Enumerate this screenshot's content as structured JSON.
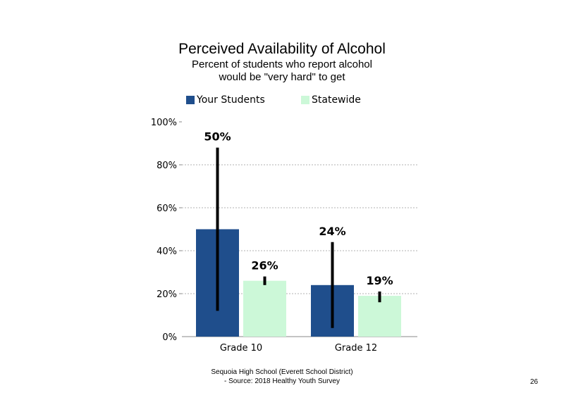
{
  "chart_data": {
    "type": "bar",
    "title": "Perceived Availability of Alcohol",
    "subtitle_lines": [
      "Percent of students who report alcohol",
      "would be \"very hard\" to get"
    ],
    "categories": [
      "Grade 10",
      "Grade 12"
    ],
    "series": [
      {
        "name": "Your Students",
        "color": "#1f4e8c",
        "values": [
          50,
          24
        ],
        "labels": [
          "50%",
          "24%"
        ],
        "error_low": [
          12,
          4
        ],
        "error_high": [
          88,
          44
        ]
      },
      {
        "name": "Statewide",
        "color": "#ccf8d8",
        "values": [
          26,
          19
        ],
        "labels": [
          "26%",
          "19%"
        ],
        "error_low": [
          24,
          16
        ],
        "error_high": [
          28,
          21
        ]
      }
    ],
    "ylim": [
      0,
      100
    ],
    "yticks": [
      0,
      20,
      40,
      60,
      80,
      100
    ],
    "ytick_labels": [
      "0%",
      "20%",
      "40%",
      "60%",
      "80%",
      "100%"
    ],
    "grid": true,
    "legend_position": "top"
  },
  "footer": {
    "line1": "Sequoia High School (Everett School District)",
    "line2": "- Source: 2018 Healthy Youth Survey"
  },
  "page_number": "26"
}
